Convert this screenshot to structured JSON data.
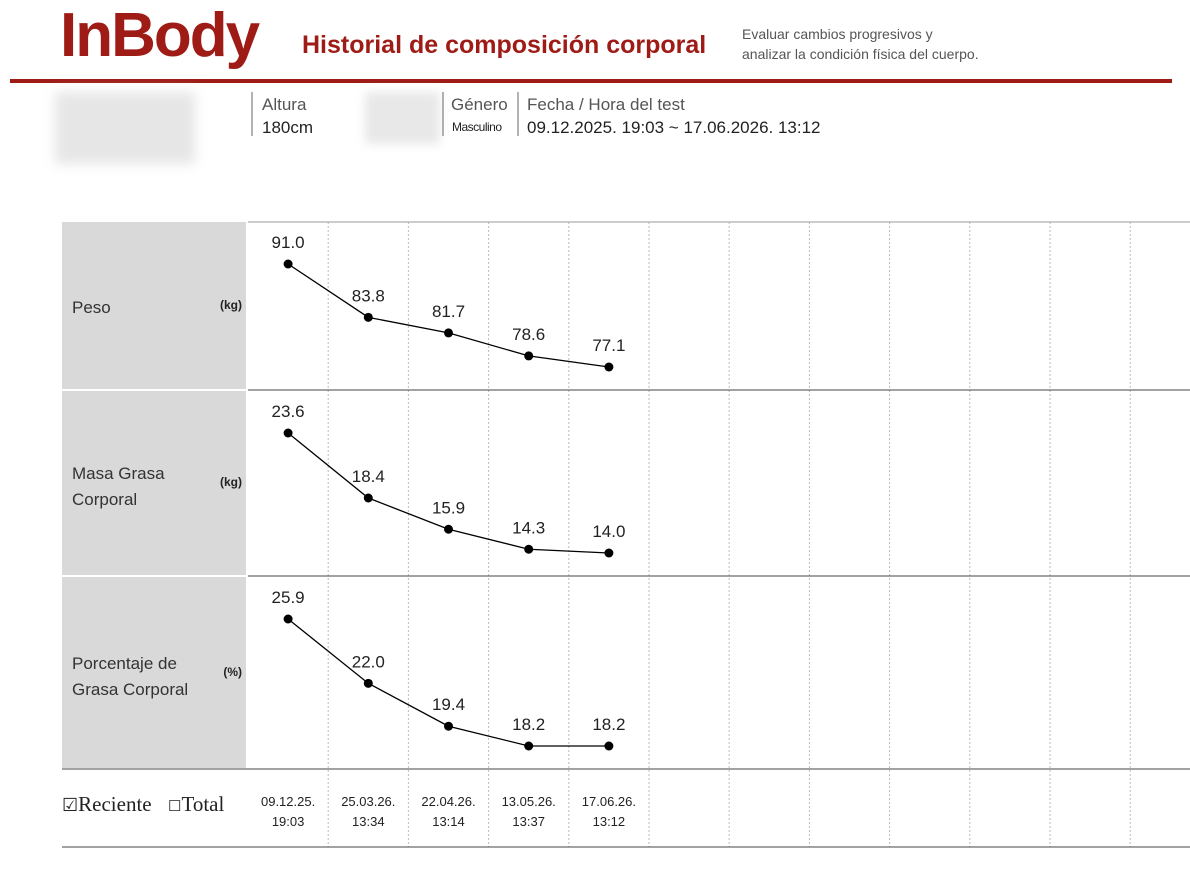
{
  "header": {
    "logo": "InBody",
    "title": "Historial de composición corporal",
    "subtitle": [
      "Evaluar cambios progresivos y",
      "analizar la condición física del cuerpo."
    ]
  },
  "info": {
    "height_label": "Altura",
    "height": "180cm",
    "gender_label": "Género",
    "gender": "Masculino",
    "date_label": "Fecha / Hora del test",
    "date_range": "09.12.2025. 19:03 ~ 17.06.2026. 13:12"
  },
  "chart_data": [
    {
      "type": "line",
      "title": "Peso",
      "unit": "(kg)",
      "color": "#000000",
      "categories": [
        "09.12.25.\n19:03",
        "25.03.26.\n13:34",
        "22.04.26.\n13:14",
        "13.05.26.\n13:37",
        "17.06.26.\n13:12"
      ],
      "values": [
        91.0,
        83.8,
        81.7,
        78.6,
        77.1
      ],
      "value_labels": [
        "91.0",
        "83.8",
        "81.7",
        "78.6",
        "77.1"
      ]
    },
    {
      "type": "line",
      "title": "Masa Grasa\nCorporal",
      "unit": "(kg)",
      "color": "#000000",
      "categories": [
        "09.12.25.\n19:03",
        "25.03.26.\n13:34",
        "22.04.26.\n13:14",
        "13.05.26.\n13:37",
        "17.06.26.\n13:12"
      ],
      "values": [
        23.6,
        18.4,
        15.9,
        14.3,
        14.0
      ],
      "value_labels": [
        "23.6",
        "18.4",
        "15.9",
        "14.3",
        "14.0"
      ]
    },
    {
      "type": "line",
      "title": "Porcentaje de\nGrasa Corporal",
      "unit": "(%)",
      "color": "#000000",
      "categories": [
        "09.12.25.\n19:03",
        "25.03.26.\n13:34",
        "22.04.26.\n13:14",
        "13.05.26.\n13:37",
        "17.06.26.\n13:12"
      ],
      "values": [
        25.9,
        22.0,
        19.4,
        18.2,
        18.2
      ],
      "value_labels": [
        "25.9",
        "22.0",
        "19.4",
        "18.2",
        "18.2"
      ]
    }
  ],
  "filter": {
    "recent": "Reciente",
    "total": "Total"
  }
}
